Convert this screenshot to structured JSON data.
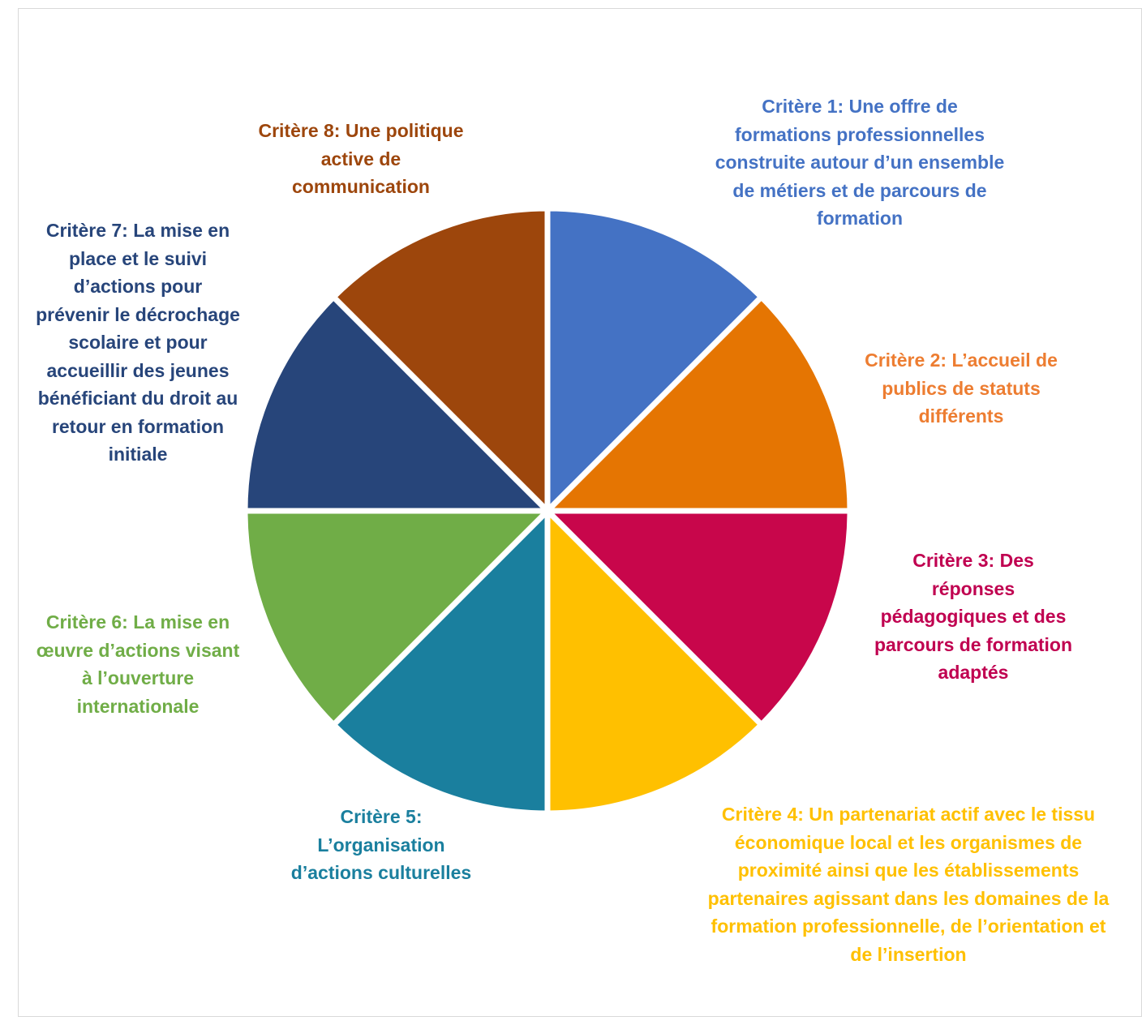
{
  "chart_data": {
    "type": "pie",
    "title": "",
    "slices": [
      {
        "label": "Critère 1: Une offre de\nformations professionnelles\nconstruite autour d’un ensemble\nde métiers et de parcours de\nformation",
        "value": 12.5,
        "color": "#4472C4"
      },
      {
        "label": "Critère 2: L’accueil de\npublics de statuts\ndifférents",
        "value": 12.5,
        "color": "#E57502"
      },
      {
        "label": "Critère 3: Des\nréponses\npédagogiques et des\nparcours de formation\nadaptés",
        "value": 12.5,
        "color": "#C8064B"
      },
      {
        "label": "Critère 4: Un partenariat actif avec le tissu\néconomique local et les organismes de\nproximité ainsi que les établissements\npartenaires agissant dans les domaines de la\nformation professionnelle, de l’orientation et\nde l’insertion",
        "value": 12.5,
        "color": "#FFC000"
      },
      {
        "label": "Critère 5:\nL’organisation\nd’actions culturelles",
        "value": 12.5,
        "color": "#1A7F9E"
      },
      {
        "label": "Critère 6: La mise en\nœuvre d’actions visant\nà l’ouverture\ninternationale",
        "value": 12.5,
        "color": "#70AD47"
      },
      {
        "label": "Critère 7: La mise en\nplace et le suivi\nd’actions pour\nprévenir le décrochage\nscolaire et pour\naccueillir des jeunes\nbénéficiant du droit au\nretour en formation\ninitiale",
        "value": 12.5,
        "color": "#27457A"
      },
      {
        "label": "Critère 8: Une politique\nactive de\ncommunication",
        "value": 12.5,
        "color": "#9D460C"
      }
    ],
    "start_angle": "top",
    "direction": "clockwise",
    "legend": "none",
    "label_colors": [
      "#4472C4",
      "#ED7D31",
      "#C00050",
      "#FFC000",
      "#1A7F9E",
      "#70AD47",
      "#27457A",
      "#9D460C"
    ]
  }
}
